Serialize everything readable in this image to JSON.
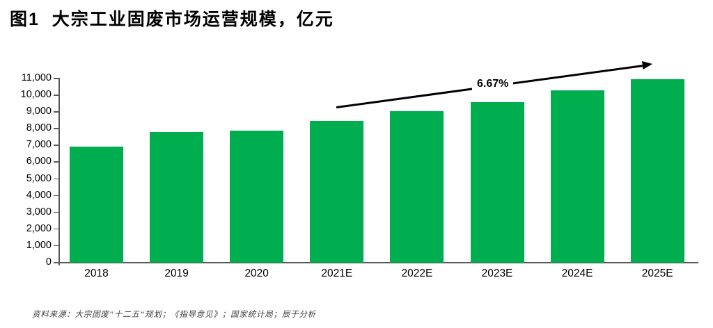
{
  "page": {
    "title": "图1  大宗工业固废市场运营规模，亿元",
    "source": "资料来源：大宗固废“十二五”规划；《指导意见》；国家统计局；辰于分析"
  },
  "chart_data": {
    "type": "bar",
    "title": "图1 大宗工业固废市场运营规模，亿元",
    "unit": "亿元",
    "categories": [
      "2018",
      "2019",
      "2020",
      "2021E",
      "2022E",
      "2023E",
      "2024E",
      "2025E"
    ],
    "values": [
      6950,
      7800,
      7900,
      8450,
      9050,
      9600,
      10300,
      10950
    ],
    "ylim": [
      0,
      11000
    ],
    "ytick_step": 1000,
    "grid": false,
    "legend": false,
    "bar_color": "#00AE4F",
    "axis_color": "#595959",
    "annotation": {
      "type": "cagr-arrow",
      "label": "6.67%",
      "from_category": "2021E",
      "to_category": "2025E"
    }
  }
}
